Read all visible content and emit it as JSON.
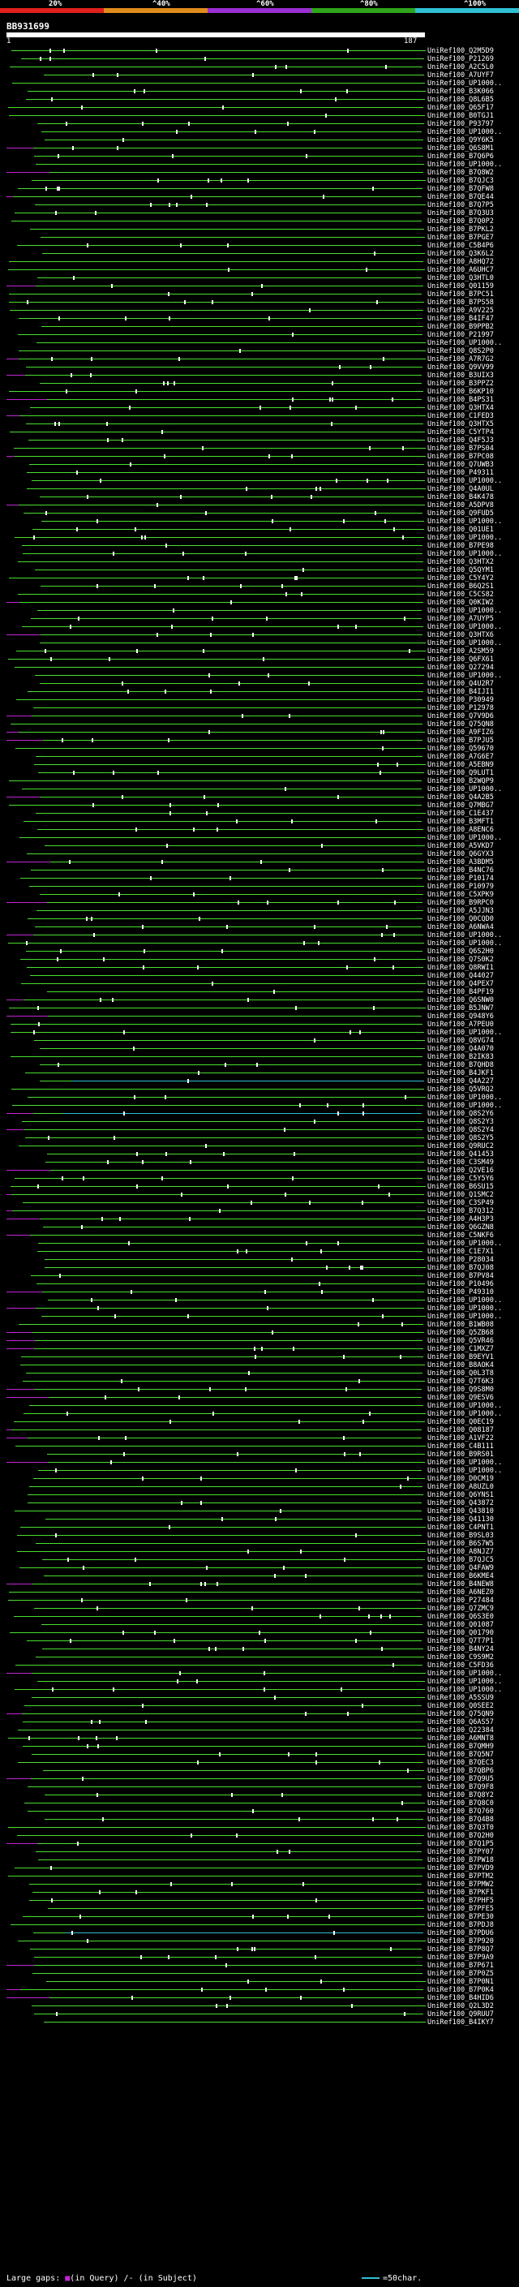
{
  "scale": {
    "ticks": [
      "20%",
      "^40%",
      "^60%",
      "^80%",
      "^100%"
    ],
    "colors": [
      "#e0201c",
      "#e08c1c",
      "#9a2fd3",
      "#2fa51c",
      "#2fbfd3"
    ]
  },
  "query": {
    "id": "BB931699",
    "start": "1",
    "end": "187"
  },
  "hits": [
    "UniRef100_Q2M5D9",
    "UniRef100_P21269",
    "UniRef100_A2C5L0",
    "UniRef100_A7UYF7",
    "UniRef100_UP1000..",
    "UniRef100_B3K066",
    "UniRef100_Q8L6B5",
    "UniRef100_Q65F17",
    "UniRef100_B0TGJ1",
    "UniRef100_P93797",
    "UniRef100_UP1000..",
    "UniRef100_Q9Y6K5",
    "UniRef100_Q6S8M1",
    "UniRef100_B7Q6P6",
    "UniRef100_UP1000..",
    "UniRef100_B7Q8W2",
    "UniRef100_B7QJC3",
    "UniRef100_B7QFW8",
    "UniRef100_B7QE44",
    "UniRef100_B7Q7P5",
    "UniRef100_B7Q3U3",
    "UniRef100_B7Q0P2",
    "UniRef100_B7PKL2",
    "UniRef100_B7PGE7",
    "UniRef100_C5B4P6",
    "UniRef100_Q3K6L2",
    "UniRef100_A8HQ72",
    "UniRef100_A6UHC7",
    "UniRef100_Q3HTL0",
    "UniRef100_Q01159",
    "UniRef100_B7PC51",
    "UniRef100_B7PS58",
    "UniRef100_A9V225",
    "UniRef100_B4IF47",
    "UniRef100_B9PPB2",
    "UniRef100_P21997",
    "UniRef100_UP1000..",
    "UniRef100_Q8S2P0",
    "UniRef100_A7R7G2",
    "UniRef100_Q9VV99",
    "UniRef100_B3UIX3",
    "UniRef100_B3PPZ2",
    "UniRef100_B6KP10",
    "UniRef100_B4PS31",
    "UniRef100_Q3HTX4",
    "UniRef100_C1FED3",
    "UniRef100_Q3HTX5",
    "UniRef100_C5YTP4",
    "UniRef100_Q4F5J3",
    "UniRef100_B7PS04",
    "UniRef100_B7PC08",
    "UniRef100_Q7UWB3",
    "UniRef100_P49311",
    "UniRef100_UP1000..",
    "UniRef100_Q4A0UL",
    "UniRef100_B4K478",
    "UniRef100_A5DPV8",
    "UniRef100_Q9FUD5",
    "UniRef100_UP1000..",
    "UniRef100_Q01UE1",
    "UniRef100_UP1000..",
    "UniRef100_B7PE98",
    "UniRef100_UP1000..",
    "UniRef100_Q3HTX2",
    "UniRef100_Q5QYM1",
    "UniRef100_C5Y4Y2",
    "UniRef100_B6Q2S1",
    "UniRef100_C5CS82",
    "UniRef100_Q0KIW2",
    "UniRef100_UP1000..",
    "UniRef100_A7UYP5",
    "UniRef100_UP1000..",
    "UniRef100_Q3HTX6",
    "UniRef100_UP1000..",
    "UniRef100_A2SM59",
    "UniRef100_Q6FX61",
    "UniRef100_Q27294",
    "UniRef100_UP1000..",
    "UniRef100_Q4U2R7",
    "UniRef100_B4IJI1",
    "UniRef100_P30949",
    "UniRef100_P12978",
    "UniRef100_Q7V9D6",
    "UniRef100_Q75QN8",
    "UniRef100_A9FIZ6",
    "UniRef100_B7PJU5",
    "UniRef100_Q59670",
    "UniRef100_A7G6E7",
    "UniRef100_A5EBN9",
    "UniRef100_Q9LUT1",
    "UniRef100_B2WQP9",
    "UniRef100_UP1000..",
    "UniRef100_Q4A2B5",
    "UniRef100_Q7MBG7",
    "UniRef100_C1E437",
    "UniRef100_B3MFT1",
    "UniRef100_A8ENC6",
    "UniRef100_UP1000..",
    "UniRef100_A5VKD7",
    "UniRef100_Q6GYX3",
    "UniRef100_A3BDM5",
    "UniRef100_B4NC76",
    "UniRef100_P10174",
    "UniRef100_P10979",
    "UniRef100_C5XPK9",
    "UniRef100_B9RPC0",
    "UniRef100_A5JJN3",
    "UniRef100_Q0CQD0",
    "UniRef100_A6NWA4",
    "UniRef100_UP1000..",
    "UniRef100_UP1000..",
    "UniRef100_Q6S2H0",
    "UniRef100_Q7S0K2",
    "UniRef100_Q8RWI1",
    "UniRef100_Q44027",
    "UniRef100_Q4PEX7",
    "UniRef100_B4PF19",
    "UniRef100_Q6SNW0",
    "UniRef100_B5JNW7",
    "UniRef100_Q948Y6",
    "UniRef100_A7PEU0",
    "UniRef100_UP1000..",
    "UniRef100_Q8VG74",
    "UniRef100_Q4A070",
    "UniRef100_B2IK83",
    "UniRef100_B7QHD8",
    "UniRef100_B4JKF1",
    "UniRef100_Q4A227",
    "UniRef100_Q5VRQ2",
    "UniRef100_UP1000..",
    "UniRef100_UP1000..",
    "UniRef100_Q8S2Y6",
    "UniRef100_Q8S2Y3",
    "UniRef100_Q8S2Y4",
    "UniRef100_Q8S2Y5",
    "UniRef100_Q9RUC2",
    "UniRef100_Q41453",
    "UniRef100_C3SM49",
    "UniRef100_Q2VE16",
    "UniRef100_C5Y5Y6",
    "UniRef100_B6SU15",
    "UniRef100_Q1SMC2",
    "UniRef100_C3SP49",
    "UniRef100_B7Q312",
    "UniRef100_A4H3P3",
    "UniRef100_Q6GZN8",
    "UniRef100_C5NKF6",
    "UniRef100_UP1000..",
    "UniRef100_C1E7X1",
    "UniRef100_P28034",
    "UniRef100_B7QJ08",
    "UniRef100_B7PV84",
    "UniRef100_P10496",
    "UniRef100_P49310",
    "UniRef100_UP1000..",
    "UniRef100_UP1000..",
    "UniRef100_UP1000..",
    "UniRef100_B1WB08",
    "UniRef100_Q5ZB68",
    "UniRef100_Q5VR46",
    "UniRef100_C1MXZ7",
    "UniRef100_B9EYV1",
    "UniRef100_B8AOK4",
    "UniRef100_Q0L3T8",
    "UniRef100_Q7T6K3",
    "UniRef100_Q9S8M0",
    "UniRef100_Q9ESV6",
    "UniRef100_UP1000..",
    "UniRef100_UP1000..",
    "UniRef100_Q0EC19",
    "UniRef100_Q08187",
    "UniRef100_A1VF22",
    "UniRef100_C4B111",
    "UniRef100_B9RS01",
    "UniRef100_UP1000..",
    "UniRef100_UP1000..",
    "UniRef100_D0CM19",
    "UniRef100_A8UZL0",
    "UniRef100_Q6YNS1",
    "UniRef100_Q43872",
    "UniRef100_Q43810",
    "UniRef100_Q41130",
    "UniRef100_C4PNT1",
    "UniRef100_B9SL03",
    "UniRef100_B6S7W5",
    "UniRef100_A8NJZ7",
    "UniRef100_B7QJC5",
    "UniRef100_Q4FAW9",
    "UniRef100_B6KME4",
    "UniRef100_B4NEW8",
    "UniRef100_A6NEZ0",
    "UniRef100_P27484",
    "UniRef100_Q7ZMC9",
    "UniRef100_Q6S3E0",
    "UniRef100_Q01087",
    "UniRef100_Q01790",
    "UniRef100_Q7T7P1",
    "UniRef100_B4NY24",
    "UniRef100_C9S9M2",
    "UniRef100_C5FD36",
    "UniRef100_UP1000..",
    "UniRef100_UP1000..",
    "UniRef100_UP1000..",
    "UniRef100_A5SSU9",
    "UniRef100_Q0SEE2",
    "UniRef100_Q75QN9",
    "UniRef100_Q6AS57",
    "UniRef100_Q22384",
    "UniRef100_A6MNT8",
    "UniRef100_B7QMH9",
    "UniRef100_B7Q5N7",
    "UniRef100_B7QEC3",
    "UniRef100_B7QBP6",
    "UniRef100_B7Q9U5",
    "UniRef100_B7Q9F8",
    "UniRef100_B7Q8Y2",
    "UniRef100_B7Q8C0",
    "UniRef100_B7Q760",
    "UniRef100_B7Q4B8",
    "UniRef100_B7Q3T0",
    "UniRef100_B7Q2H0",
    "UniRef100_B7Q1P5",
    "UniRef100_B7PY07",
    "UniRef100_B7PW18",
    "UniRef100_B7PVD9",
    "UniRef100_B7PTM2",
    "UniRef100_B7PMW2",
    "UniRef100_B7PKF1",
    "UniRef100_B7PHF5",
    "UniRef100_B7PFE5",
    "UniRef100_B7PE30",
    "UniRef100_B7PDJ8",
    "UniRef100_B7PDU6",
    "UniRef100_B7P920",
    "UniRef100_B7P8Q7",
    "UniRef100_B7P9A9",
    "UniRef100_B7P671",
    "UniRef100_B7P0Z5",
    "UniRef100_B7P0N1",
    "UniRef100_B7P0K4",
    "UniRef100_B4HID6",
    "UniRef100_Q2L3D2",
    "UniRef100_Q9RUU7",
    "UniRef100_B4IKY7"
  ],
  "legend": {
    "large_gaps": "Large gaps:",
    "in_query": "(in Query)",
    "in_subject": "/- (in Subject)",
    "scale_note": "=50char."
  }
}
